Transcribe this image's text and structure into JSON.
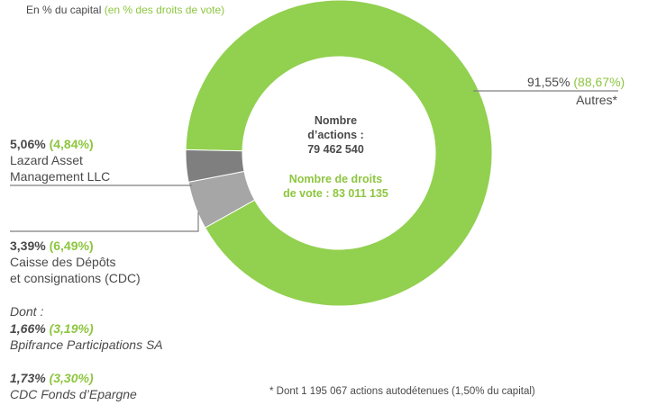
{
  "header": {
    "capital_text": "En % du capital",
    "votes_text": "(en % des droits de vote)"
  },
  "center": {
    "shares_line1": "Nombre",
    "shares_line2": "d’actions :",
    "shares_line3": "79 462 540",
    "votes_line1": "Nombre de droits",
    "votes_line2": "de vote : 83 011 135"
  },
  "labels": {
    "autres": {
      "pct": "91,55%",
      "vote": "(88,67%)",
      "name": "Autres*"
    },
    "lazard": {
      "pct": "5,06%",
      "vote": "(4,84%)",
      "name_line1": "Lazard Asset",
      "name_line2": "Management LLC"
    },
    "cdc": {
      "pct": "3,39%",
      "vote": "(6,49%)",
      "name_line1": "Caisse des Dépôts",
      "name_line2": "et consignations (CDC)"
    },
    "dont": "Dont :",
    "bpi": {
      "pct": "1,66%",
      "vote": "(3,19%)",
      "name": "Bpifrance Participations SA"
    },
    "cdcfe": {
      "pct": "1,73%",
      "vote": "(3,30%)",
      "name": "CDC Fonds d’Epargne"
    }
  },
  "footnote": "* Dont 1 195 067 actions autodétenues  (1,50% du capital)",
  "chart_data": {
    "type": "pie",
    "series": [
      {
        "name": "Autres*",
        "value": 91.55,
        "color": "#92d050"
      },
      {
        "name": "Lazard Asset Management LLC",
        "value": 5.06,
        "color": "#a6a6a6"
      },
      {
        "name": "Caisse des Dépôts et consignations (CDC)",
        "value": 3.39,
        "color": "#7f7f7f"
      }
    ],
    "leader_color": "#7f7f7f"
  }
}
